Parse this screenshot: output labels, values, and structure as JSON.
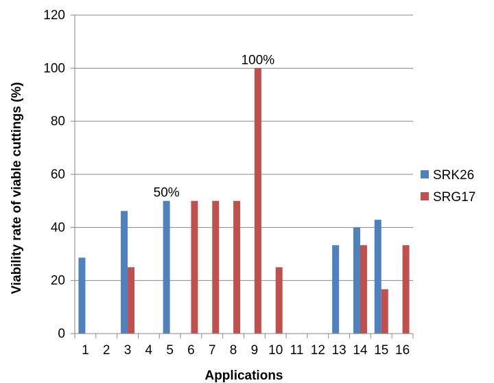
{
  "chart_data": {
    "type": "bar",
    "title": "",
    "xlabel": "Applications",
    "ylabel": "Viability rate of viable cuttings (%)",
    "ylim": [
      0,
      120
    ],
    "yticks": [
      0,
      20,
      40,
      60,
      80,
      100,
      120
    ],
    "grid": true,
    "legend_position": "right",
    "categories": [
      "1",
      "2",
      "3",
      "4",
      "5",
      "6",
      "7",
      "8",
      "9",
      "10",
      "11",
      "12",
      "13",
      "14",
      "15",
      "16"
    ],
    "series": [
      {
        "name": "SRK26",
        "color": "#4F81BD",
        "values": [
          28.6,
          0,
          46.2,
          0,
          50,
          0,
          0,
          0,
          0,
          0,
          0,
          0,
          33.3,
          40,
          42.9,
          0
        ]
      },
      {
        "name": "SRG17",
        "color": "#C0504D",
        "values": [
          0,
          0,
          25,
          0,
          0,
          50,
          50,
          50,
          100,
          25,
          0,
          0,
          0,
          33.3,
          16.7,
          33.3
        ]
      }
    ],
    "annotations": [
      {
        "text": "50%",
        "category": "5",
        "series": "SRK26"
      },
      {
        "text": "100%",
        "category": "9",
        "series": "SRG17"
      }
    ]
  }
}
